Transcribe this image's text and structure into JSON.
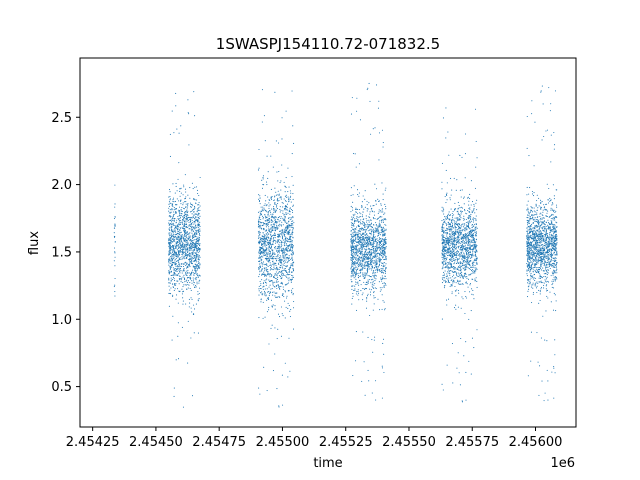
{
  "chart_data": {
    "type": "scatter",
    "title": "1SWASPJ154110.72-071832.5",
    "xlabel": "time",
    "ylabel": "flux",
    "x_offset_label": "1e6",
    "xlim": [
      2.4542,
      2.45616
    ],
    "ylim": [
      0.2,
      2.94
    ],
    "x_ticks": [
      {
        "value": 2.45425,
        "label": "2.45425"
      },
      {
        "value": 2.4545,
        "label": "2.45450"
      },
      {
        "value": 2.45475,
        "label": "2.45475"
      },
      {
        "value": 2.455,
        "label": "2.45500"
      },
      {
        "value": 2.45525,
        "label": "2.45525"
      },
      {
        "value": 2.4555,
        "label": "2.45550"
      },
      {
        "value": 2.45575,
        "label": "2.45575"
      },
      {
        "value": 2.456,
        "label": "2.45600"
      }
    ],
    "y_ticks": [
      {
        "value": 0.5,
        "label": "0.5"
      },
      {
        "value": 1.0,
        "label": "1.0"
      },
      {
        "value": 1.5,
        "label": "1.5"
      },
      {
        "value": 2.0,
        "label": "2.0"
      },
      {
        "value": 2.5,
        "label": "2.5"
      }
    ],
    "grid": false,
    "marker_color": "#1f77b4",
    "clusters": [
      {
        "x_range": [
          2.454335,
          2.45434
        ],
        "y_center": 1.55,
        "y_spread": 0.22,
        "y_min": 1.15,
        "y_max": 2.02
      },
      {
        "x_range": [
          2.45455,
          2.454675
        ],
        "y_center": 1.55,
        "y_spread": 0.18,
        "y_min": 0.34,
        "y_max": 2.75
      },
      {
        "x_range": [
          2.454905,
          2.455045
        ],
        "y_center": 1.55,
        "y_spread": 0.2,
        "y_min": 0.32,
        "y_max": 2.76
      },
      {
        "x_range": [
          2.45527,
          2.45541
        ],
        "y_center": 1.52,
        "y_spread": 0.16,
        "y_min": 0.36,
        "y_max": 2.78
      },
      {
        "x_range": [
          2.45563,
          2.45577
        ],
        "y_center": 1.55,
        "y_spread": 0.15,
        "y_min": 0.36,
        "y_max": 2.62
      },
      {
        "x_range": [
          2.455965,
          2.456085
        ],
        "y_center": 1.55,
        "y_spread": 0.15,
        "y_min": 0.36,
        "y_max": 2.76
      }
    ]
  }
}
